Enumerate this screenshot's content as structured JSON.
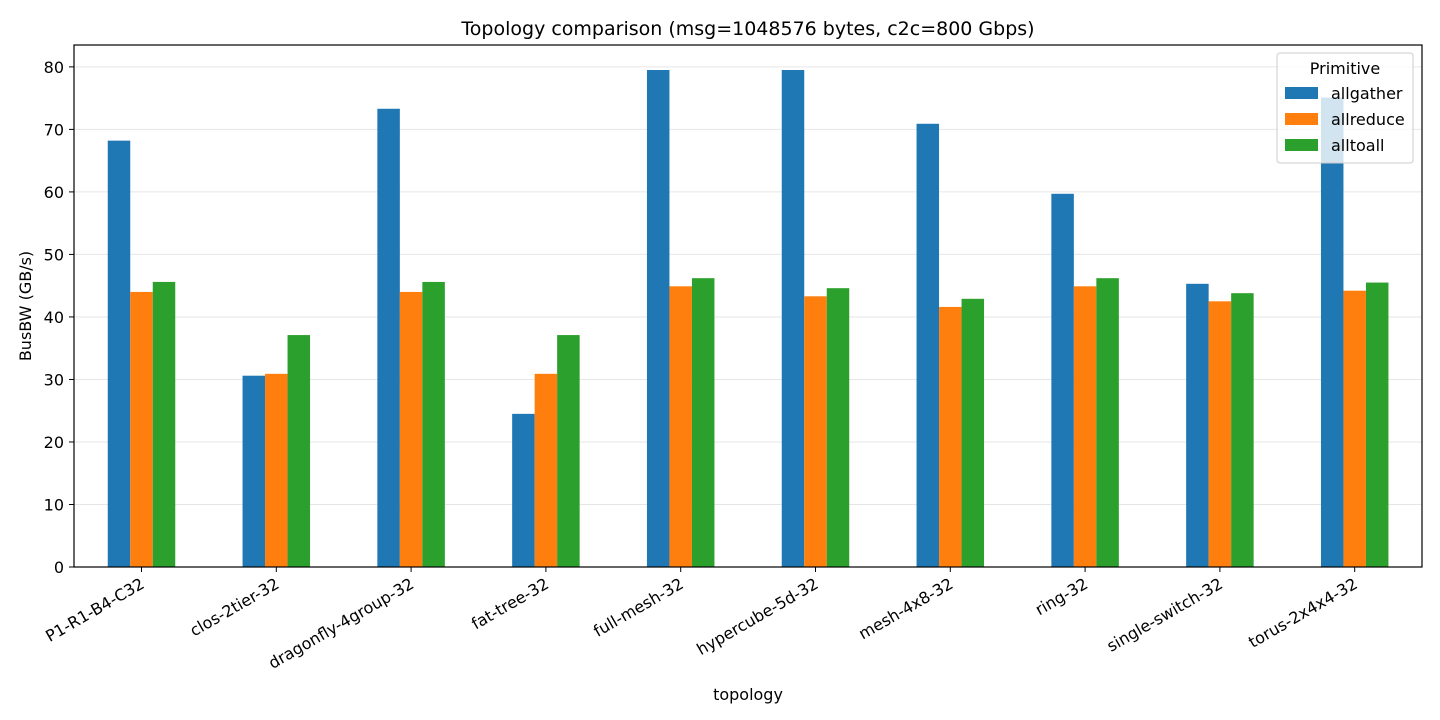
{
  "chart_data": {
    "type": "bar",
    "title": "Topology comparison (msg=1048576 bytes, c2c=800 Gbps)",
    "xlabel": "topology",
    "ylabel": "BusBW (GB/s)",
    "ylim": [
      0,
      83.5
    ],
    "yticks": [
      0,
      10,
      20,
      30,
      40,
      50,
      60,
      70,
      80
    ],
    "grid": "horizontal",
    "legend": {
      "title": "Primitive",
      "placement": "top-right"
    },
    "categories": [
      "P1-R1-B4-C32",
      "clos-2tier-32",
      "dragonfly-4group-32",
      "fat-tree-32",
      "full-mesh-32",
      "hypercube-5d-32",
      "mesh-4x8-32",
      "ring-32",
      "single-switch-32",
      "torus-2x4x4-32"
    ],
    "series": [
      {
        "name": "allgather",
        "color": "#1f77b4",
        "values": [
          68.2,
          30.6,
          73.3,
          24.5,
          79.5,
          79.5,
          70.9,
          59.7,
          45.3,
          75.1
        ]
      },
      {
        "name": "allreduce",
        "color": "#ff7f0e",
        "values": [
          44.0,
          30.9,
          44.0,
          30.9,
          44.9,
          43.3,
          41.6,
          44.9,
          42.5,
          44.2
        ]
      },
      {
        "name": "alltoall",
        "color": "#2ca02c",
        "values": [
          45.6,
          37.1,
          45.6,
          37.1,
          46.2,
          44.6,
          42.9,
          46.2,
          43.8,
          45.5
        ]
      }
    ]
  }
}
